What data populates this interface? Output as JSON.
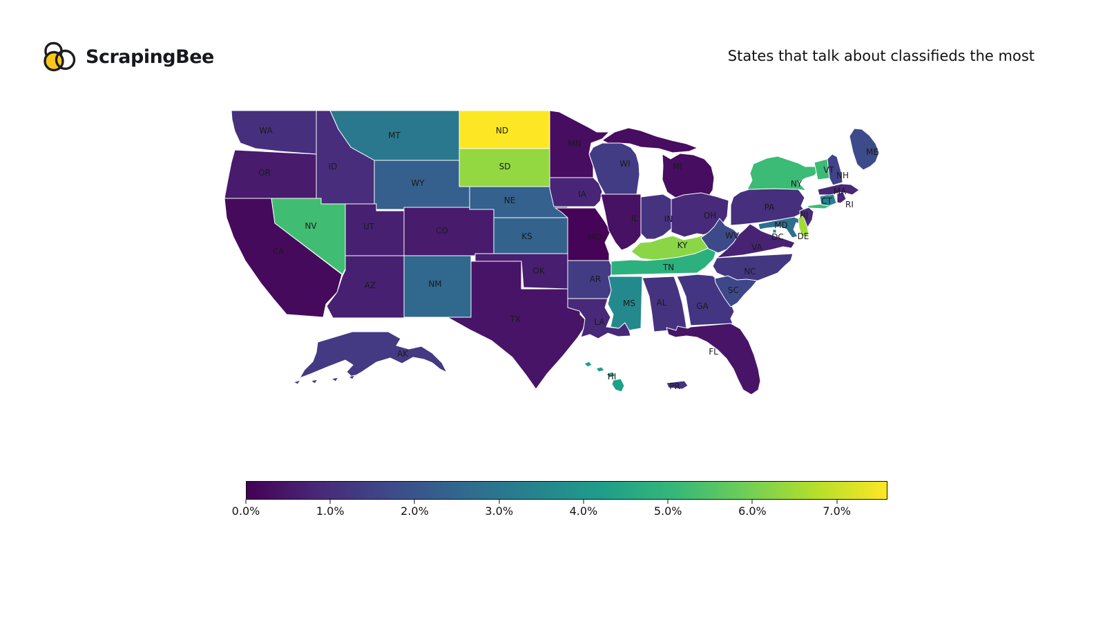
{
  "header": {
    "brand": "ScrapingBee",
    "title": "States that talk about classifieds the most"
  },
  "colors": {
    "background": "#ffffff",
    "brand_yellow": "#fbc81a",
    "brand_dark": "#1d1d1f",
    "state_border": "#ffffff",
    "label_color": "#1a1a1a"
  },
  "chart_data": {
    "type": "choropleth",
    "region": "usa-states",
    "title": "States that talk about classifieds the most",
    "unit": "%",
    "colorscale": "viridis",
    "legend_position": "bottom",
    "colorbar": {
      "min": 0.0,
      "max": 7.6,
      "tick_values": [
        0,
        1,
        2,
        3,
        4,
        5,
        6,
        7
      ],
      "tick_labels": [
        "0.0%",
        "1.0%",
        "2.0%",
        "3.0%",
        "4.0%",
        "5.0%",
        "6.0%",
        "7.0%"
      ]
    },
    "states": [
      {
        "code": "CA",
        "value": 0.3,
        "color": "#460a5d"
      },
      {
        "code": "OR",
        "value": 0.6,
        "color": "#481b6d"
      },
      {
        "code": "WA",
        "value": 1.2,
        "color": "#46307e"
      },
      {
        "code": "ID",
        "value": 1.1,
        "color": "#472d7b"
      },
      {
        "code": "MT",
        "value": 2.9,
        "color": "#2a788e"
      },
      {
        "code": "WY",
        "value": 2.2,
        "color": "#355f8d"
      },
      {
        "code": "NV",
        "value": 5.0,
        "color": "#40bd72"
      },
      {
        "code": "UT",
        "value": 0.7,
        "color": "#482071"
      },
      {
        "code": "CO",
        "value": 0.6,
        "color": "#481b6d"
      },
      {
        "code": "AZ",
        "value": 0.7,
        "color": "#482071"
      },
      {
        "code": "NM",
        "value": 2.5,
        "color": "#31688e"
      },
      {
        "code": "ND",
        "value": 7.6,
        "color": "#fde725"
      },
      {
        "code": "SD",
        "value": 6.0,
        "color": "#93d741"
      },
      {
        "code": "NE",
        "value": 2.25,
        "color": "#34618d"
      },
      {
        "code": "KS",
        "value": 2.3,
        "color": "#33638d"
      },
      {
        "code": "OK",
        "value": 0.65,
        "color": "#481e70"
      },
      {
        "code": "TX",
        "value": 0.45,
        "color": "#481467"
      },
      {
        "code": "MN",
        "value": 0.35,
        "color": "#470d60"
      },
      {
        "code": "IA",
        "value": 0.85,
        "color": "#482576"
      },
      {
        "code": "MO",
        "value": 0.1,
        "color": "#450457"
      },
      {
        "code": "AR",
        "value": 1.5,
        "color": "#423c85"
      },
      {
        "code": "LA",
        "value": 0.95,
        "color": "#482878"
      },
      {
        "code": "WI",
        "value": 1.5,
        "color": "#423c85"
      },
      {
        "code": "IL",
        "value": 0.4,
        "color": "#471164"
      },
      {
        "code": "MS",
        "value": 3.4,
        "color": "#23898d"
      },
      {
        "code": "MI",
        "value": 0.35,
        "color": "#470d60"
      },
      {
        "code": "IN",
        "value": 1.25,
        "color": "#453380"
      },
      {
        "code": "OH",
        "value": 1.0,
        "color": "#472a7a"
      },
      {
        "code": "KY",
        "value": 5.9,
        "color": "#8bd646"
      },
      {
        "code": "TN",
        "value": 4.6,
        "color": "#2cb17e"
      },
      {
        "code": "AL",
        "value": 1.25,
        "color": "#453380"
      },
      {
        "code": "GA",
        "value": 1.3,
        "color": "#443582"
      },
      {
        "code": "FL",
        "value": 0.45,
        "color": "#481467"
      },
      {
        "code": "NC",
        "value": 1.35,
        "color": "#443781"
      },
      {
        "code": "SC",
        "value": 1.8,
        "color": "#3e4889"
      },
      {
        "code": "VA",
        "value": 0.75,
        "color": "#482273"
      },
      {
        "code": "WV",
        "value": 1.9,
        "color": "#3d4a8a"
      },
      {
        "code": "PA",
        "value": 1.15,
        "color": "#462f7d"
      },
      {
        "code": "NY",
        "value": 4.9,
        "color": "#3bbb75"
      },
      {
        "code": "NJ",
        "value": 1.0,
        "color": "#472a7a"
      },
      {
        "code": "MD",
        "value": 2.7,
        "color": "#2e6f8e"
      },
      {
        "code": "DE",
        "value": 6.2,
        "color": "#a2da37"
      },
      {
        "code": "DC",
        "value": 3.2,
        "color": "#26828e"
      },
      {
        "code": "CT",
        "value": 3.2,
        "color": "#26828e"
      },
      {
        "code": "RI",
        "value": 0.9,
        "color": "#482777"
      },
      {
        "code": "MA",
        "value": 0.9,
        "color": "#482777"
      },
      {
        "code": "VT",
        "value": 4.9,
        "color": "#3bbb75"
      },
      {
        "code": "NH",
        "value": 1.7,
        "color": "#404388"
      },
      {
        "code": "ME",
        "value": 1.95,
        "color": "#3d4b8a"
      },
      {
        "code": "AK",
        "value": 1.4,
        "color": "#433a83"
      },
      {
        "code": "HI",
        "value": 4.0,
        "color": "#1fa188"
      },
      {
        "code": "PR",
        "value": 1.3,
        "color": "#443582"
      }
    ]
  }
}
